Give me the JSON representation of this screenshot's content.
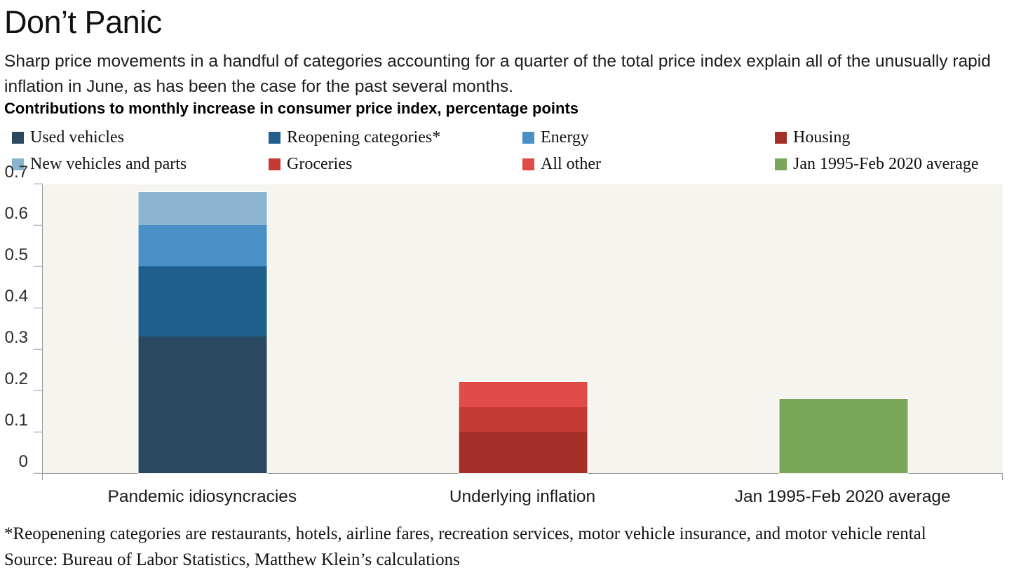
{
  "header": {
    "title": "Don’t Panic",
    "subtitle": "Sharp price movements in a handful of categories accounting for a quarter of the total price index explain all of the unusually rapid inflation in June, as has been the case for the past several months.",
    "chart_heading": "Contributions to monthly increase in consumer price index, percentage points"
  },
  "legend": {
    "items": [
      {
        "label": "Used vehicles",
        "color": "#2a4960"
      },
      {
        "label": "Reopening categories*",
        "color": "#1f5f8c"
      },
      {
        "label": "Energy",
        "color": "#4890c6"
      },
      {
        "label": "Housing",
        "color": "#a32f28"
      },
      {
        "label": "New vehicles and parts",
        "color": "#8ab4cf"
      },
      {
        "label": "Groceries",
        "color": "#c23a33"
      },
      {
        "label": "All other",
        "color": "#e04b47"
      },
      {
        "label": "Jan 1995-Feb 2020 average",
        "color": "#7aa65a"
      }
    ]
  },
  "chart_data": {
    "type": "bar",
    "stacked": true,
    "title": "Contributions to monthly increase in consumer price index, percentage points",
    "ylabel": "percentage points",
    "xlabel": "",
    "ylim": [
      0,
      0.7
    ],
    "y_tick_labels": [
      "0",
      "0.1",
      "0.2",
      "0.3",
      "0.4",
      "0.5",
      "0.6",
      "0.7"
    ],
    "grid": false,
    "legend_position": "top",
    "plot_background": "#f5f4ef",
    "categories": [
      "Pandemic idiosyncracies",
      "Underlying inflation",
      "Jan 1995-Feb 2020 average"
    ],
    "series": [
      {
        "name": "Used vehicles",
        "color": "#2a4960",
        "values": [
          0.33,
          0,
          0
        ]
      },
      {
        "name": "Reopening categories*",
        "color": "#1f5f8c",
        "values": [
          0.17,
          0,
          0
        ]
      },
      {
        "name": "Energy",
        "color": "#4890c6",
        "values": [
          0.1,
          0,
          0
        ]
      },
      {
        "name": "New vehicles and parts",
        "color": "#8ab4cf",
        "values": [
          0.08,
          0,
          0
        ]
      },
      {
        "name": "Housing",
        "color": "#a32f28",
        "values": [
          0,
          0.1,
          0
        ]
      },
      {
        "name": "Groceries",
        "color": "#c23a33",
        "values": [
          0,
          0.06,
          0
        ]
      },
      {
        "name": "All other",
        "color": "#e04b47",
        "values": [
          0,
          0.06,
          0
        ]
      },
      {
        "name": "Jan 1995-Feb 2020 average",
        "color": "#7aa65a",
        "values": [
          0,
          0,
          0.18
        ]
      }
    ],
    "bar_totals": [
      0.68,
      0.22,
      0.18
    ]
  },
  "footer": {
    "footnote": "*Reopenening categories are restaurants, hotels, airline fares, recreation services, motor vehicle insurance, and motor vehicle rental",
    "source": "Source: Bureau of Labor Statistics, Matthew Klein’s calculations"
  }
}
